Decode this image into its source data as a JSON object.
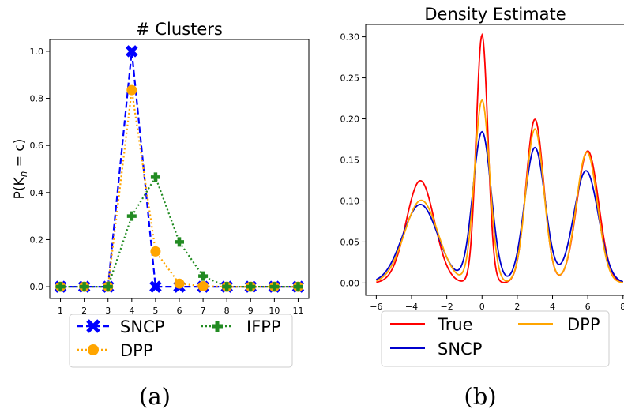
{
  "chart_data": [
    {
      "type": "line",
      "title": "# Clusters",
      "ylabel_prefix": "P(K",
      "ylabel_sub": "n",
      "ylabel_suffix": " = c)",
      "x": [
        1,
        2,
        3,
        4,
        5,
        6,
        7,
        8,
        9,
        10,
        11
      ],
      "xticks": [
        "1",
        "2",
        "3",
        "4",
        "5",
        "6",
        "7",
        "8",
        "9",
        "10",
        "11"
      ],
      "yticks": [
        "0.0",
        "0.2",
        "0.4",
        "0.6",
        "0.8",
        "1.0"
      ],
      "ytick_values": [
        0,
        0.2,
        0.4,
        0.6,
        0.8,
        1.0
      ],
      "xlim": [
        0.55,
        11.45
      ],
      "ylim": [
        -0.05,
        1.05
      ],
      "grid": false,
      "legend": "bottom-outside",
      "series": [
        {
          "name": "SNCP",
          "color": "#0000ff",
          "dash": "dashed",
          "marker": "x",
          "values": [
            0,
            0,
            0,
            1.0,
            0,
            0,
            0,
            0,
            0,
            0,
            0
          ]
        },
        {
          "name": "DPP",
          "color": "#ffa500",
          "dash": "dotted",
          "marker": "o",
          "values": [
            0,
            0,
            0,
            0.835,
            0.15,
            0.013,
            0.002,
            0,
            0,
            0,
            0
          ]
        },
        {
          "name": "IFPP",
          "color": "#228b22",
          "dash": "dotted",
          "marker": "P",
          "values": [
            0,
            0,
            0,
            0.3,
            0.465,
            0.19,
            0.045,
            0,
            0,
            0,
            0
          ]
        }
      ],
      "caption": "(a)"
    },
    {
      "type": "line",
      "title": "Density Estimate",
      "xticks": [
        "−6",
        "−4",
        "−2",
        "0",
        "2",
        "4",
        "6",
        "8"
      ],
      "xtick_values": [
        -6,
        -4,
        -2,
        0,
        2,
        4,
        6,
        8
      ],
      "yticks": [
        "0.00",
        "0.05",
        "0.10",
        "0.15",
        "0.20",
        "0.25",
        "0.30"
      ],
      "ytick_values": [
        0,
        0.05,
        0.1,
        0.15,
        0.2,
        0.25,
        0.3
      ],
      "xlim": [
        -6.6,
        8.1
      ],
      "ylim": [
        -0.015,
        0.315
      ],
      "grid": false,
      "legend": "bottom-outside",
      "series": [
        {
          "name": "True",
          "color": "#ff0000",
          "components": [
            {
              "w": 0.25,
              "mu": -3.5,
              "sd": 0.8
            },
            {
              "w": 0.25,
              "mu": 0,
              "sd": 0.33
            },
            {
              "w": 0.25,
              "mu": 3,
              "sd": 0.5
            },
            {
              "w": 0.25,
              "mu": 6,
              "sd": 0.62
            }
          ]
        },
        {
          "name": "SNCP",
          "color": "#0000cd",
          "components": [
            {
              "w": 0.24,
              "mu": -3.5,
              "sd": 1.0
            },
            {
              "w": 0.24,
              "mu": 0,
              "sd": 0.52
            },
            {
              "w": 0.24,
              "mu": 3,
              "sd": 0.58
            },
            {
              "w": 0.24,
              "mu": 5.9,
              "sd": 0.7
            }
          ]
        },
        {
          "name": "DPP",
          "color": "#ffa500",
          "components": [
            {
              "w": 0.24,
              "mu": -3.45,
              "sd": 0.95
            },
            {
              "w": 0.24,
              "mu": 0,
              "sd": 0.43
            },
            {
              "w": 0.24,
              "mu": 3,
              "sd": 0.51
            },
            {
              "w": 0.24,
              "mu": 5.95,
              "sd": 0.6
            }
          ]
        }
      ],
      "caption": "(b)"
    }
  ]
}
